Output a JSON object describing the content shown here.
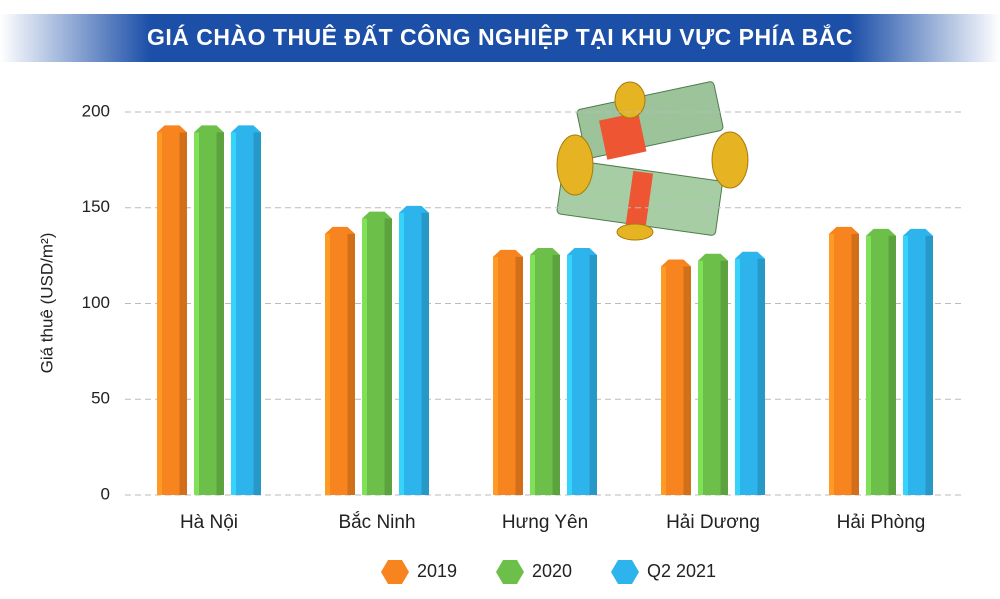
{
  "chart_data": {
    "type": "bar",
    "title": "GIÁ CHÀO THUÊ ĐẤT CÔNG NGHIỆP TẠI KHU VỰC PHÍA BẮC",
    "y_label": "Giá thuê (USD/m²)",
    "categories": [
      "Hà Nội",
      "Bắc Ninh",
      "Hưng Yên",
      "Hải Dương",
      "Hải Phòng"
    ],
    "series": [
      {
        "name": "2019",
        "color": "#f7841e",
        "values": [
          193,
          140,
          128,
          123,
          140
        ]
      },
      {
        "name": "2020",
        "color": "#6cc04a",
        "values": [
          193,
          148,
          129,
          126,
          139
        ]
      },
      {
        "name": "Q2 2021",
        "color": "#2eb4ec",
        "values": [
          193,
          151,
          129,
          127,
          139
        ]
      }
    ],
    "ylim": [
      0,
      200
    ],
    "yticks": [
      0,
      50,
      100,
      150,
      200
    ],
    "grid": true
  }
}
